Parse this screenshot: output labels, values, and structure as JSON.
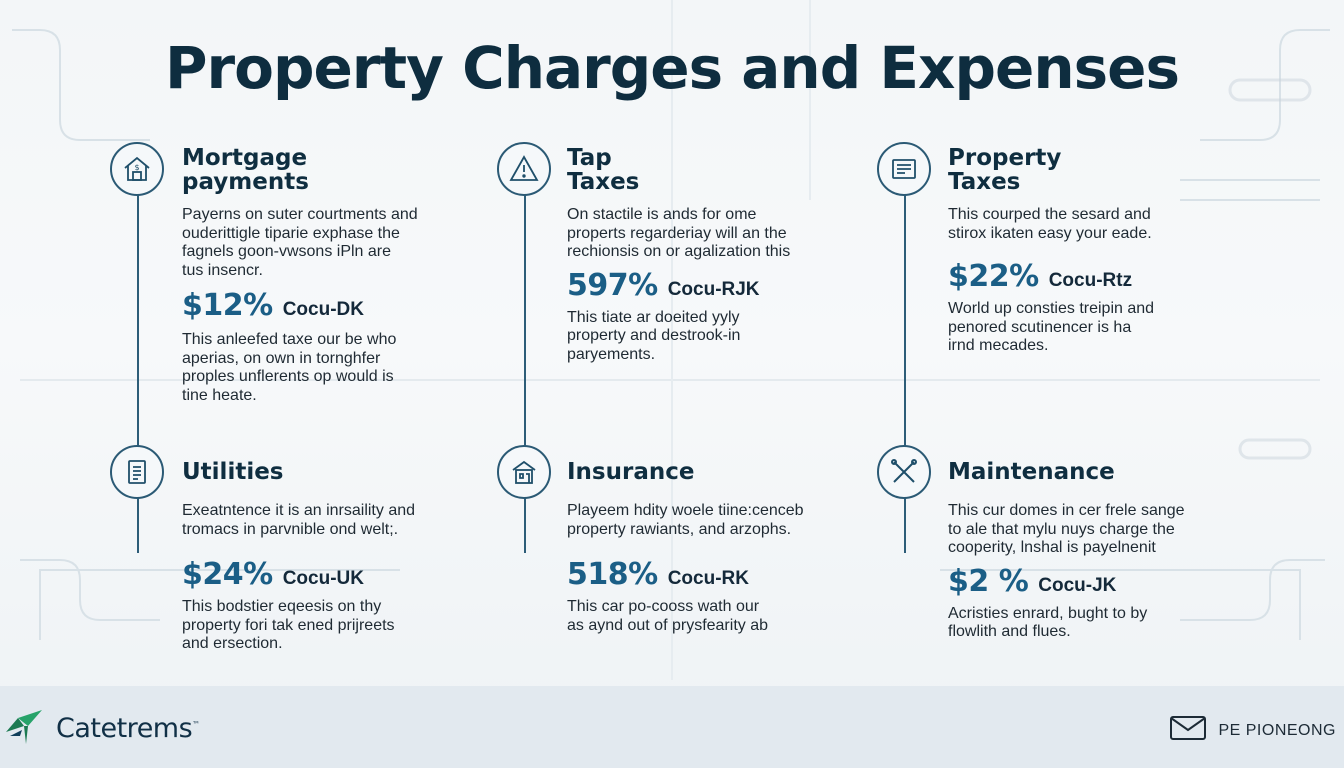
{
  "title": "Property Charges and Expenses",
  "cards": [
    {
      "icon": "house-dollar-icon",
      "title": "Mortgage\npayments",
      "desc": "Payerns on suter courtments and\nouderittigle tiparie exphase the\nfagnels goon-vwsons iPln are\ntus insencr.",
      "stat_value": "$12%",
      "stat_code": "Cocu-DK",
      "note": "This anleefed taxe our be who\naperias, on own in tornghfer\nproples unflerents op would is\ntine heate."
    },
    {
      "icon": "warning-triangle-icon",
      "title": "Tap\nTaxes",
      "desc": "On stactile is ands for ome\nproperts regarderiay will an the\nrechionsis on or agalization this",
      "stat_value": "597%",
      "stat_code": "Cocu-RJK",
      "note": "This tiate ar doeited yyly\nproperty and destrook-in\nparyements."
    },
    {
      "icon": "document-list-icon",
      "title": "Property\nTaxes",
      "desc": "This courped the sesard and\nstirox ikaten easy your eade.",
      "stat_value": "$22%",
      "stat_code": "Cocu-Rtz",
      "note": "World up consties treipin and\npenored scutinencer is ha\nirnd mecades."
    },
    {
      "icon": "clipboard-icon",
      "title": "Utilities",
      "desc": "Exeatntence it is an inrsaility and\ntromacs in parvnible ond welt;.",
      "stat_value": "$24%",
      "stat_code": "Cocu-UK",
      "note": "This bodstier eqeesis on thy\nproperty fori tak ened prijreets\nand ersection."
    },
    {
      "icon": "house-building-icon",
      "title": "Insurance",
      "desc": "Playeem hdity woele tiine:cenceb\nproperty rawiants, and arzophs.",
      "stat_value": "518%",
      "stat_code": "Cocu-RK",
      "note": "This car po-cooss wath our\nas aynd out of prysfearity ab"
    },
    {
      "icon": "crossed-tools-icon",
      "title": "Maintenance",
      "desc": "This cur domes in cer frele sange\nto ale that mylu nuys charge the\ncooperity, lnshal is payelnenit",
      "stat_value": "$2 %",
      "stat_code": "Cocu-JK",
      "note": "Acristies enrard, bught to by\nflowlith and flues."
    }
  ],
  "footer": {
    "brand": "Catetrems",
    "brand_mark": "™",
    "contact": "PE PIONEONG"
  }
}
